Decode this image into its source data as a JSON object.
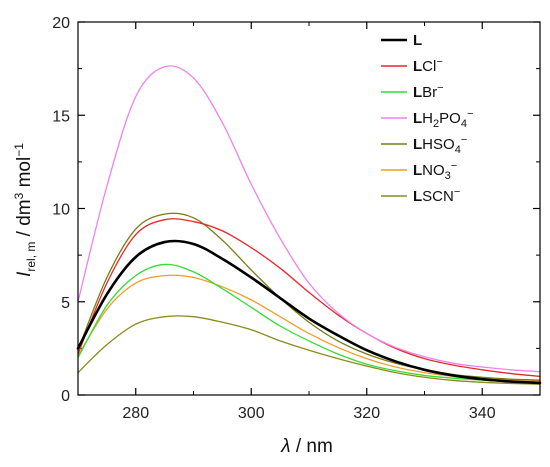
{
  "chart_data": {
    "type": "line",
    "title": "",
    "x_axis": {
      "label_var": "λ",
      "label_unit": " / nm",
      "min": 270,
      "max": 350,
      "ticks": [
        280,
        300,
        320,
        340
      ],
      "tick_labels": [
        "280",
        "300",
        "320",
        "340"
      ]
    },
    "y_axis": {
      "label_var": "I",
      "label_sub": "rel, m",
      "label_unit": " / dm",
      "label_unit_sup1": "3",
      "label_mol": " mol",
      "label_unit_sup2": "−1",
      "min": 0,
      "max": 20,
      "ticks": [
        0,
        5,
        10,
        15,
        20
      ],
      "tick_labels": [
        "0",
        "5",
        "10",
        "15",
        "20"
      ]
    },
    "legend_position": "top-right",
    "x": [
      270,
      275,
      280,
      285,
      290,
      295,
      300,
      305,
      310,
      315,
      320,
      325,
      330,
      335,
      340,
      345,
      350
    ],
    "series": [
      {
        "name": "L",
        "legend": {
          "bold": "L",
          "main": "",
          "sub": "",
          "tail": "",
          "sup": ""
        },
        "color": "#000000",
        "width": 2.6,
        "values": [
          2.5,
          5.4,
          7.4,
          8.2,
          8.1,
          7.3,
          6.3,
          5.2,
          4.1,
          3.2,
          2.4,
          1.8,
          1.35,
          1.05,
          0.85,
          0.72,
          0.65
        ]
      },
      {
        "name": "LCl−",
        "legend": {
          "bold": "L",
          "main": "Cl",
          "sub": "",
          "tail": "",
          "sup": "−"
        },
        "color": "#e8282a",
        "width": 1.3,
        "values": [
          2.2,
          6.0,
          8.6,
          9.4,
          9.3,
          8.8,
          7.9,
          6.8,
          5.5,
          4.3,
          3.3,
          2.5,
          1.95,
          1.6,
          1.35,
          1.15,
          1.0
        ]
      },
      {
        "name": "LBr−",
        "legend": {
          "bold": "L",
          "main": "Br",
          "sub": "",
          "tail": "",
          "sup": "−"
        },
        "color": "#33dd33",
        "width": 1.3,
        "values": [
          2.0,
          4.8,
          6.4,
          7.0,
          6.6,
          5.7,
          4.7,
          3.7,
          2.9,
          2.2,
          1.65,
          1.3,
          1.05,
          0.9,
          0.8,
          0.72,
          0.68
        ]
      },
      {
        "name": "LH2PO4−",
        "legend": {
          "bold": "L",
          "main": "H",
          "sub": "2",
          "tail": "PO",
          "sub2": "4",
          "sup": "−"
        },
        "color": "#ee82ee",
        "width": 1.3,
        "values": [
          5.0,
          11.2,
          16.0,
          17.6,
          17.0,
          14.6,
          11.3,
          8.4,
          6.0,
          4.4,
          3.3,
          2.55,
          2.05,
          1.7,
          1.5,
          1.35,
          1.25
        ]
      },
      {
        "name": "LHSO4−",
        "legend": {
          "bold": "L",
          "main": "HSO",
          "sub": "4",
          "tail": "",
          "sup": "−"
        },
        "color": "#7a7a14",
        "width": 1.3,
        "values": [
          2.4,
          6.3,
          8.9,
          9.7,
          9.5,
          8.3,
          6.7,
          5.2,
          3.9,
          2.9,
          2.2,
          1.7,
          1.35,
          1.1,
          0.95,
          0.85,
          0.8
        ]
      },
      {
        "name": "LNO3−",
        "legend": {
          "bold": "L",
          "main": "NO",
          "sub": "3",
          "tail": "",
          "sup": "−"
        },
        "color": "#f39c2a",
        "width": 1.3,
        "values": [
          2.1,
          4.6,
          6.0,
          6.4,
          6.3,
          5.8,
          5.1,
          4.2,
          3.3,
          2.55,
          1.95,
          1.5,
          1.2,
          1.0,
          0.88,
          0.8,
          0.75
        ]
      },
      {
        "name": "LSCN−",
        "legend": {
          "bold": "L",
          "main": "SCN",
          "sub": "",
          "tail": "",
          "sup": "−"
        },
        "color": "#8b8b1a",
        "width": 1.3,
        "values": [
          1.2,
          2.7,
          3.8,
          4.2,
          4.2,
          3.9,
          3.5,
          2.9,
          2.4,
          1.95,
          1.55,
          1.2,
          0.95,
          0.78,
          0.68,
          0.62,
          0.58
        ]
      }
    ]
  }
}
